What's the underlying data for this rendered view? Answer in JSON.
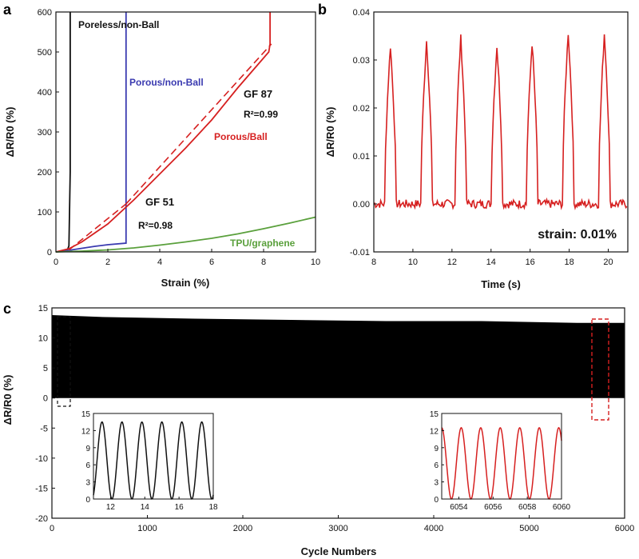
{
  "panel_labels": {
    "a": "a",
    "b": "b",
    "c": "c"
  },
  "colors": {
    "black": "#111111",
    "blue": "#3a3ab0",
    "red": "#d62020",
    "green": "#5aa03c"
  },
  "chart_data": [
    {
      "id": "a",
      "type": "line",
      "xlabel": "Strain (%)",
      "ylabel": "ΔR/R0 (%)",
      "xlim": [
        0,
        10
      ],
      "ylim": [
        0,
        600
      ],
      "xticks": [
        "0",
        "2",
        "4",
        "6",
        "8",
        "10"
      ],
      "yticks": [
        "0",
        "100",
        "200",
        "300",
        "400",
        "500",
        "600"
      ],
      "series": [
        {
          "name": "Poreless/non-Ball",
          "color": "#111111",
          "x": [
            0,
            0.3,
            0.45,
            0.5,
            0.55,
            0.55
          ],
          "y": [
            0,
            2,
            6,
            15,
            200,
            600
          ]
        },
        {
          "name": "Porous/non-Ball",
          "color": "#3a3ab0",
          "x": [
            0,
            0.5,
            1.0,
            1.5,
            2.0,
            2.7,
            2.7
          ],
          "y": [
            0,
            4,
            9,
            14,
            18,
            22,
            600
          ]
        },
        {
          "name": "Porous/Ball",
          "color": "#d62020",
          "x": [
            0,
            0.5,
            1,
            2,
            3,
            4,
            5,
            6,
            7,
            7.8,
            8.2,
            8.25,
            8.25
          ],
          "y": [
            0,
            8,
            25,
            70,
            130,
            195,
            260,
            330,
            410,
            470,
            500,
            520,
            600
          ]
        },
        {
          "name": "TPU/graphene",
          "color": "#5aa03c",
          "x": [
            0,
            1,
            2,
            3,
            4,
            5,
            6,
            7,
            8,
            9,
            10
          ],
          "y": [
            0,
            2,
            5,
            10,
            17,
            25,
            34,
            45,
            58,
            72,
            87
          ]
        }
      ],
      "fit_lines": [
        {
          "color": "#d62020",
          "x": [
            0.5,
            2.7
          ],
          "y": [
            5,
            120
          ]
        },
        {
          "color": "#d62020",
          "x": [
            2.7,
            8.3
          ],
          "y": [
            120,
            520
          ]
        }
      ],
      "annotations": {
        "gf87": "GF 87",
        "r2_high": "R²=0.99",
        "gf51": "GF 51",
        "r2_low": "R²=0.98"
      }
    },
    {
      "id": "b",
      "type": "line",
      "xlabel": "Time (s)",
      "ylabel": "ΔR/R0 (%)",
      "xlim": [
        8,
        21
      ],
      "ylim": [
        -0.01,
        0.04
      ],
      "xticks": [
        "8",
        "10",
        "12",
        "14",
        "16",
        "18",
        "20"
      ],
      "yticks": [
        "-0.01",
        "0.00",
        "0.01",
        "0.02",
        "0.03",
        "0.04"
      ],
      "peaks_x": [
        8.85,
        10.7,
        12.45,
        14.3,
        16.1,
        17.95,
        19.8
      ],
      "peaks_y": [
        0.033,
        0.034,
        0.0345,
        0.033,
        0.0335,
        0.0358,
        0.0355
      ],
      "color": "#d62020",
      "annotation": "strain: 0.01%"
    },
    {
      "id": "c",
      "type": "area",
      "xlabel": "Cycle Numbers",
      "ylabel": "ΔR/R0 (%)",
      "xlim": [
        0,
        6000
      ],
      "ylim": [
        -20,
        15
      ],
      "xticks": [
        "0",
        "1000",
        "2000",
        "3000",
        "4000",
        "5000",
        "6000"
      ],
      "yticks": [
        "-20",
        "-15",
        "-10",
        "-5",
        "0",
        "5",
        "10",
        "15"
      ],
      "band_top": [
        [
          0,
          13.8
        ],
        [
          500,
          13.5
        ],
        [
          1500,
          13.2
        ],
        [
          2500,
          13.0
        ],
        [
          3500,
          12.8
        ],
        [
          4500,
          12.8
        ],
        [
          5500,
          12.5
        ],
        [
          6000,
          12.5
        ]
      ],
      "band_bottom": [
        [
          0,
          0
        ],
        [
          6000,
          0
        ]
      ],
      "insets": [
        {
          "id": "inset-left",
          "color": "#111111",
          "xlim": [
            11,
            18
          ],
          "ylim": [
            0,
            15
          ],
          "xticks": [
            "12",
            "14",
            "16",
            "18"
          ],
          "yticks": [
            "0",
            "3",
            "6",
            "9",
            "12",
            "15"
          ],
          "peaks": [
            11.5,
            12.67,
            13.83,
            15.0,
            16.17,
            17.33
          ],
          "peak_y": 13.5
        },
        {
          "id": "inset-right",
          "color": "#d62020",
          "xlim": [
            6053,
            6060
          ],
          "ylim": [
            0,
            15
          ],
          "xticks": [
            "6054",
            "6056",
            "6058",
            "6060"
          ],
          "yticks": [
            "0",
            "3",
            "6",
            "9",
            "12",
            "15"
          ],
          "peaks": [
            6053.0,
            6054.2,
            6055.3,
            6056.4,
            6057.6,
            6058.7
          ],
          "peak_y": 12.5
        }
      ]
    }
  ]
}
